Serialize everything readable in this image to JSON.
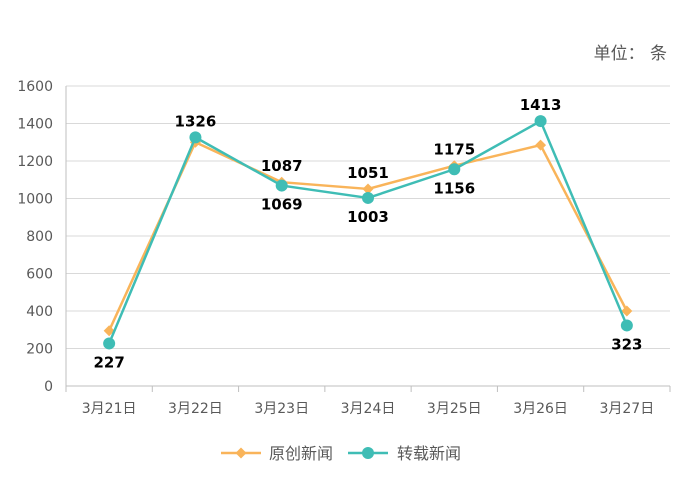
{
  "unit_label": "单位：   条",
  "colors": {
    "original": "#F9B45A",
    "reprint": "#3FBDB5",
    "grid": "#D9D9D9",
    "axis": "#BFBFBF"
  },
  "chart_data": {
    "type": "line",
    "title": "",
    "xlabel": "",
    "ylabel": "",
    "categories": [
      "3月21日",
      "3月22日",
      "3月23日",
      "3月24日",
      "3月25日",
      "3月26日",
      "3月27日"
    ],
    "ylim": [
      0,
      1600
    ],
    "yticks": [
      0,
      200,
      400,
      600,
      800,
      1000,
      1200,
      1400,
      1600
    ],
    "grid": true,
    "legend_position": "bottom",
    "series": [
      {
        "name": "原创新闻",
        "marker": "diamond",
        "color": "#F9B45A",
        "values": [
          295,
          1300,
          1087,
          1051,
          1175,
          1285,
          400
        ]
      },
      {
        "name": "转载新闻",
        "marker": "circle",
        "color": "#3FBDB5",
        "values": [
          227,
          1326,
          1069,
          1003,
          1156,
          1413,
          323
        ]
      }
    ],
    "data_labels": [
      {
        "text": "227",
        "category": 0,
        "value": 227,
        "placement": "below"
      },
      {
        "text": "1326",
        "category": 1,
        "value": 1326,
        "placement": "above"
      },
      {
        "text": "1087",
        "category": 2,
        "value": 1087,
        "placement": "above"
      },
      {
        "text": "1069",
        "category": 2,
        "value": 1069,
        "placement": "below"
      },
      {
        "text": "1051",
        "category": 3,
        "value": 1051,
        "placement": "above"
      },
      {
        "text": "1003",
        "category": 3,
        "value": 1003,
        "placement": "below"
      },
      {
        "text": "1175",
        "category": 4,
        "value": 1175,
        "placement": "above"
      },
      {
        "text": "1156",
        "category": 4,
        "value": 1156,
        "placement": "below"
      },
      {
        "text": "1413",
        "category": 5,
        "value": 1413,
        "placement": "above"
      },
      {
        "text": "323",
        "category": 6,
        "value": 323,
        "placement": "below"
      }
    ]
  }
}
